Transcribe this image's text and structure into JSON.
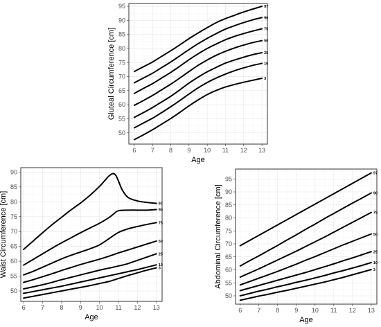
{
  "chart_data": [
    {
      "type": "line",
      "xlabel": "Age",
      "ylabel": "Gluteal Circumference [cm]",
      "xlim": [
        5.7,
        13.3
      ],
      "ylim": [
        46,
        96
      ],
      "xticks": [
        6,
        7,
        8,
        9,
        10,
        11,
        12,
        13
      ],
      "yticks": [
        50,
        55,
        60,
        65,
        70,
        75,
        80,
        85,
        90,
        95
      ],
      "grid": true,
      "x": [
        6,
        6.5,
        7,
        7.5,
        8,
        8.5,
        9,
        9.5,
        10,
        10.5,
        11,
        11.5,
        12,
        12.5,
        13
      ],
      "series": [
        {
          "name": "97",
          "values": [
            71.8,
            73.5,
            75.2,
            77.2,
            79.2,
            81.3,
            83.5,
            85.5,
            87.4,
            89.2,
            90.6,
            91.8,
            93.0,
            94.0,
            95.0
          ]
        },
        {
          "name": "90",
          "values": [
            67.8,
            69.5,
            71.2,
            73.2,
            75.2,
            77.4,
            79.6,
            81.7,
            83.6,
            85.3,
            86.9,
            88.1,
            89.2,
            90.2,
            91.0
          ]
        },
        {
          "name": "75",
          "values": [
            64.0,
            65.8,
            67.5,
            69.5,
            71.5,
            73.7,
            76.0,
            78.1,
            80.0,
            81.6,
            83.1,
            84.3,
            85.3,
            86.2,
            87.0
          ]
        },
        {
          "name": "50",
          "values": [
            59.8,
            61.5,
            63.3,
            65.3,
            67.3,
            69.5,
            71.8,
            74.0,
            75.9,
            77.6,
            79.0,
            80.2,
            81.2,
            82.1,
            82.8
          ]
        },
        {
          "name": "25",
          "values": [
            55.5,
            57.2,
            59.0,
            61.0,
            63.0,
            65.3,
            67.7,
            69.8,
            71.7,
            73.3,
            74.8,
            75.9,
            76.9,
            77.8,
            78.5
          ]
        },
        {
          "name": "10",
          "values": [
            51.8,
            53.5,
            55.2,
            57.2,
            59.3,
            61.5,
            63.8,
            66.0,
            67.9,
            69.5,
            70.9,
            72.1,
            73.1,
            74.0,
            74.7
          ]
        },
        {
          "name": "3",
          "values": [
            47.6,
            49.3,
            51.1,
            53.1,
            55.1,
            57.3,
            59.6,
            61.7,
            63.6,
            65.1,
            66.3,
            67.2,
            68.0,
            68.7,
            69.4
          ]
        }
      ]
    },
    {
      "type": "line",
      "xlabel": "Age",
      "ylabel": "Waist Circumference [cm]",
      "xlim": [
        5.85,
        13.3
      ],
      "ylim": [
        46.5,
        91.5
      ],
      "xticks": [
        6,
        7,
        8,
        9,
        10,
        11,
        12,
        13
      ],
      "yticks": [
        50,
        55,
        60,
        65,
        70,
        75,
        80,
        85,
        90
      ],
      "grid": true,
      "series": [
        {
          "name": "97",
          "x": [
            6,
            6.5,
            7,
            7.5,
            8,
            8.5,
            9,
            9.5,
            10,
            10.3,
            10.5,
            10.7,
            10.85,
            11,
            11.2,
            11.5,
            12,
            12.5,
            13
          ],
          "values": [
            64.0,
            66.8,
            69.6,
            72.3,
            74.8,
            77.3,
            79.6,
            82.2,
            85.2,
            87.3,
            88.7,
            89.5,
            89.0,
            87.0,
            84.0,
            81.5,
            80.3,
            79.8,
            79.5
          ]
        },
        {
          "name": "90",
          "x": [
            6,
            6.5,
            7,
            7.5,
            8,
            8.5,
            9,
            9.5,
            10,
            10.5,
            10.8,
            11,
            11.5,
            12,
            12.5,
            13
          ],
          "values": [
            58.7,
            60.6,
            62.5,
            64.4,
            66.2,
            67.9,
            69.6,
            71.2,
            72.8,
            74.7,
            76.2,
            77.0,
            77.2,
            77.2,
            77.2,
            77.4
          ]
        },
        {
          "name": "75",
          "x": [
            6,
            6.5,
            7,
            7.5,
            8,
            8.5,
            9,
            9.5,
            10,
            10.5,
            11,
            11.5,
            12,
            12.5,
            13
          ],
          "values": [
            55.4,
            56.6,
            58.0,
            59.4,
            60.8,
            62.0,
            63.1,
            64.2,
            65.5,
            67.6,
            69.7,
            70.9,
            71.7,
            72.4,
            73.0
          ]
        },
        {
          "name": "50",
          "x": [
            6,
            6.5,
            7,
            7.5,
            8,
            8.5,
            9,
            9.5,
            10,
            10.5,
            11,
            11.5,
            12,
            12.5,
            13
          ],
          "values": [
            52.9,
            53.8,
            54.8,
            55.8,
            56.9,
            57.9,
            58.9,
            59.8,
            60.7,
            61.7,
            62.8,
            63.8,
            64.8,
            65.8,
            66.8
          ]
        },
        {
          "name": "25",
          "x": [
            6,
            6.5,
            7,
            7.5,
            8,
            8.5,
            9,
            9.5,
            10,
            10.5,
            11,
            11.5,
            12,
            12.5,
            13
          ],
          "values": [
            50.7,
            51.4,
            52.1,
            52.9,
            53.8,
            54.6,
            55.4,
            56.2,
            57.0,
            57.7,
            58.4,
            59.2,
            60.3,
            61.4,
            62.5
          ]
        },
        {
          "name": "10",
          "x": [
            6,
            6.5,
            7,
            7.5,
            8,
            8.5,
            9,
            9.5,
            10,
            10.5,
            11,
            11.5,
            12,
            12.5,
            13
          ],
          "values": [
            49.2,
            49.8,
            50.4,
            51.0,
            51.6,
            52.3,
            53.0,
            53.7,
            54.4,
            55.1,
            55.8,
            56.5,
            57.2,
            58.0,
            58.8
          ]
        },
        {
          "name": "3",
          "x": [
            6,
            6.5,
            7,
            7.5,
            8,
            8.5,
            9,
            9.5,
            10,
            10.5,
            11,
            11.5,
            12,
            12.5,
            13
          ],
          "values": [
            47.6,
            48.2,
            48.8,
            49.4,
            50.0,
            50.6,
            51.2,
            51.8,
            52.5,
            53.2,
            54.2,
            55.2,
            56.1,
            57.0,
            57.8
          ]
        }
      ]
    },
    {
      "type": "line",
      "xlabel": "Age",
      "ylabel": "Abdominal Circumference [cm]",
      "xlim": [
        5.75,
        13.3
      ],
      "ylim": [
        46.8,
        98.8
      ],
      "xticks": [
        6,
        7,
        8,
        9,
        10,
        11,
        12,
        13
      ],
      "yticks": [
        50,
        55,
        60,
        65,
        70,
        75,
        80,
        85,
        90,
        95
      ],
      "grid": true,
      "x": [
        6,
        6.5,
        7,
        7.5,
        8,
        8.5,
        9,
        9.5,
        10,
        10.5,
        11,
        11.5,
        12,
        12.5,
        13
      ],
      "series": [
        {
          "name": "97",
          "values": [
            69.3,
            71.3,
            73.3,
            75.3,
            77.3,
            79.3,
            81.3,
            83.3,
            85.3,
            87.3,
            89.3,
            91.3,
            93.3,
            95.3,
            97.3
          ]
        },
        {
          "name": "90",
          "values": [
            61.5,
            63.5,
            65.4,
            67.4,
            69.4,
            71.5,
            73.5,
            75.6,
            77.6,
            79.7,
            81.7,
            83.7,
            85.7,
            87.6,
            89.6
          ]
        },
        {
          "name": "75",
          "values": [
            57.2,
            58.8,
            60.4,
            62.1,
            63.8,
            65.5,
            67.2,
            69.0,
            70.8,
            72.6,
            74.5,
            76.4,
            78.3,
            80.2,
            82.1
          ]
        },
        {
          "name": "50",
          "values": [
            54.2,
            55.5,
            56.8,
            58.1,
            59.4,
            60.8,
            62.2,
            63.7,
            65.1,
            66.6,
            68.1,
            69.6,
            71.0,
            72.4,
            73.8
          ]
        },
        {
          "name": "25",
          "values": [
            52.0,
            53.0,
            54.0,
            55.0,
            56.0,
            57.0,
            58.0,
            59.0,
            60.1,
            61.2,
            62.3,
            63.5,
            64.6,
            65.8,
            67.0
          ]
        },
        {
          "name": "10",
          "values": [
            50.0,
            50.9,
            51.8,
            52.6,
            53.5,
            54.3,
            55.2,
            56.0,
            56.9,
            57.8,
            58.8,
            59.7,
            60.7,
            61.7,
            62.8
          ]
        },
        {
          "name": "3",
          "values": [
            48.3,
            49.1,
            49.9,
            50.6,
            51.4,
            52.1,
            52.9,
            53.7,
            54.5,
            55.3,
            56.2,
            57.1,
            58.1,
            59.1,
            60.1
          ]
        }
      ]
    }
  ]
}
